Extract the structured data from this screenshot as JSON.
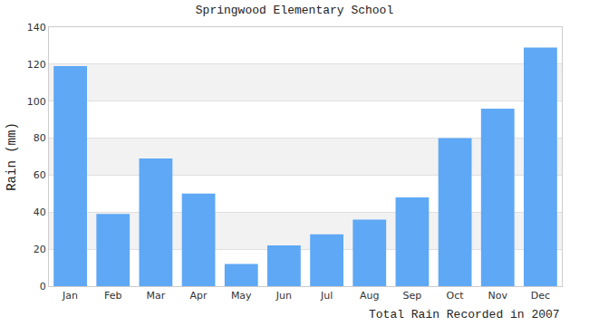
{
  "chart_data": {
    "type": "bar",
    "title": "Springwood Elementary School",
    "xlabel": "Total Rain Recorded in 2007",
    "ylabel": "Rain (mm)",
    "categories": [
      "Jan",
      "Feb",
      "Mar",
      "Apr",
      "May",
      "Jun",
      "Jul",
      "Aug",
      "Sep",
      "Oct",
      "Nov",
      "Dec"
    ],
    "values": [
      119,
      39,
      69,
      50,
      12,
      22,
      28,
      36,
      48,
      80,
      96,
      129
    ],
    "color": "#5ea8f5",
    "ylim": [
      0,
      140
    ],
    "yticks": [
      0,
      20,
      40,
      60,
      80,
      100,
      120,
      140
    ],
    "grid": true
  }
}
